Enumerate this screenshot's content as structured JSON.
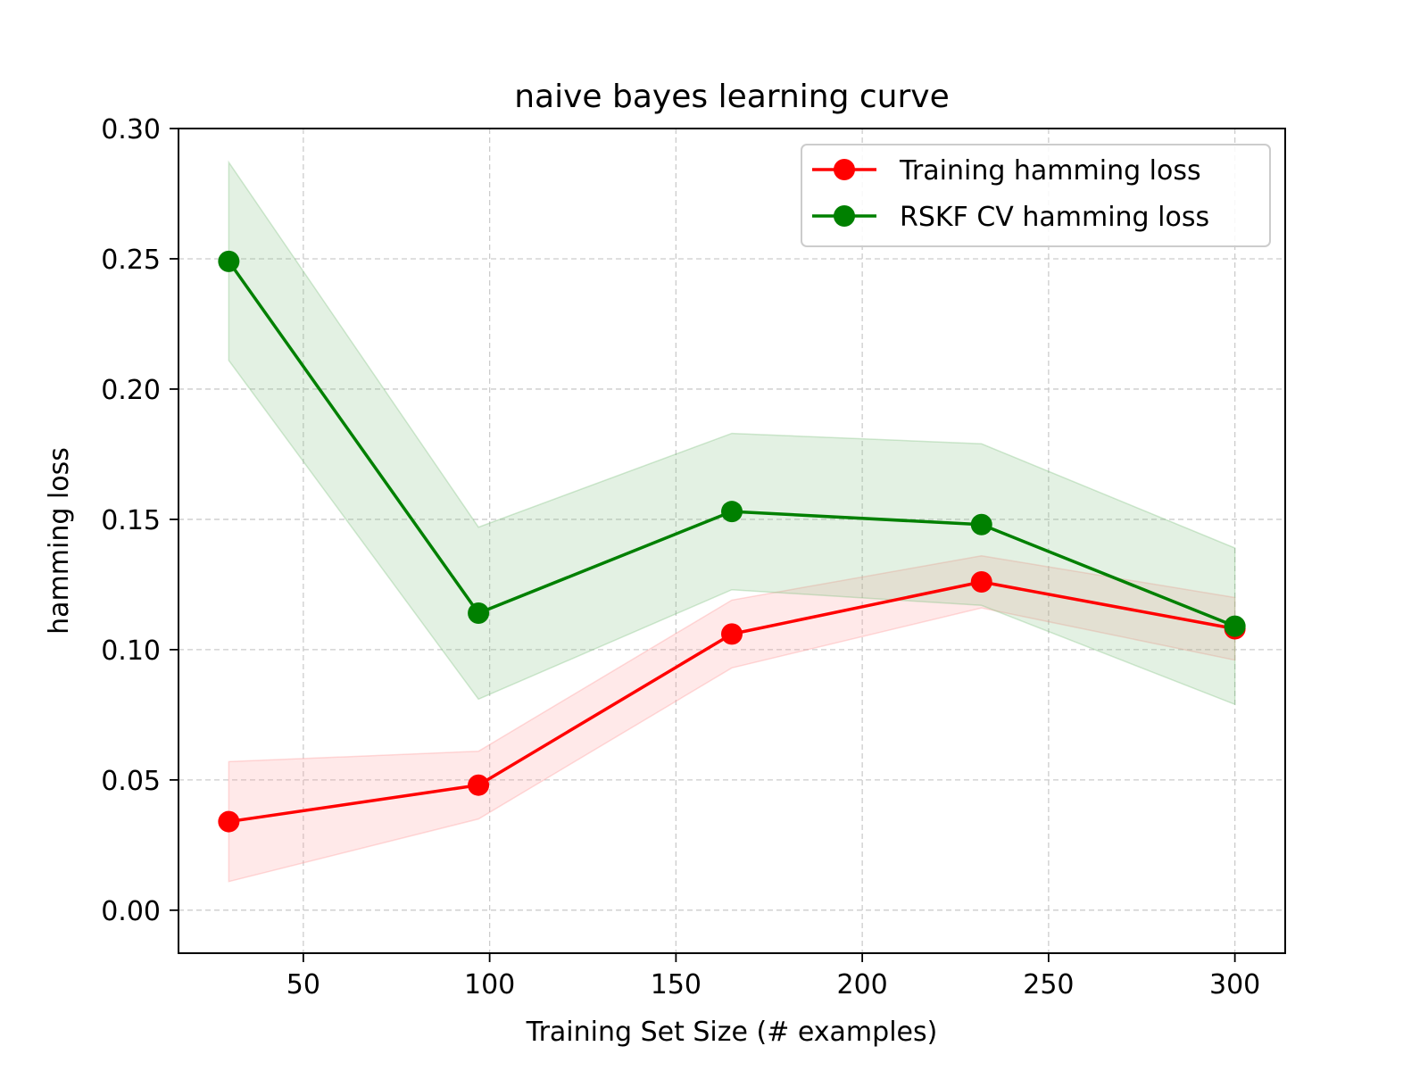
{
  "chart_data": {
    "type": "line",
    "title": "naive bayes learning curve",
    "xlabel": "Training Set Size (# examples)",
    "ylabel": "hamming loss",
    "xlim": [
      16.5,
      313.5
    ],
    "ylim": [
      -0.0165,
      0.3
    ],
    "xticks": [
      50,
      100,
      150,
      200,
      250,
      300
    ],
    "xtick_labels": [
      "50",
      "100",
      "150",
      "200",
      "250",
      "300"
    ],
    "yticks": [
      0.0,
      0.05,
      0.1,
      0.15,
      0.2,
      0.25,
      0.3
    ],
    "ytick_labels": [
      "0.00",
      "0.05",
      "0.10",
      "0.15",
      "0.20",
      "0.25",
      "0.30"
    ],
    "grid": true,
    "legend_position": "top-right",
    "x": [
      30,
      97,
      165,
      232,
      300
    ],
    "series": [
      {
        "name": "Training hamming loss",
        "color": "#ff0000",
        "band_color": "#ff9999",
        "values": [
          0.034,
          0.048,
          0.106,
          0.126,
          0.108
        ],
        "lower": [
          0.011,
          0.035,
          0.093,
          0.116,
          0.096
        ],
        "upper": [
          0.057,
          0.061,
          0.119,
          0.136,
          0.12
        ]
      },
      {
        "name": "RSKF CV hamming loss",
        "color": "#008000",
        "band_color": "#7fbf7f",
        "values": [
          0.249,
          0.114,
          0.153,
          0.148,
          0.109
        ],
        "lower": [
          0.211,
          0.081,
          0.123,
          0.117,
          0.079
        ],
        "upper": [
          0.287,
          0.147,
          0.183,
          0.179,
          0.139
        ]
      }
    ]
  }
}
